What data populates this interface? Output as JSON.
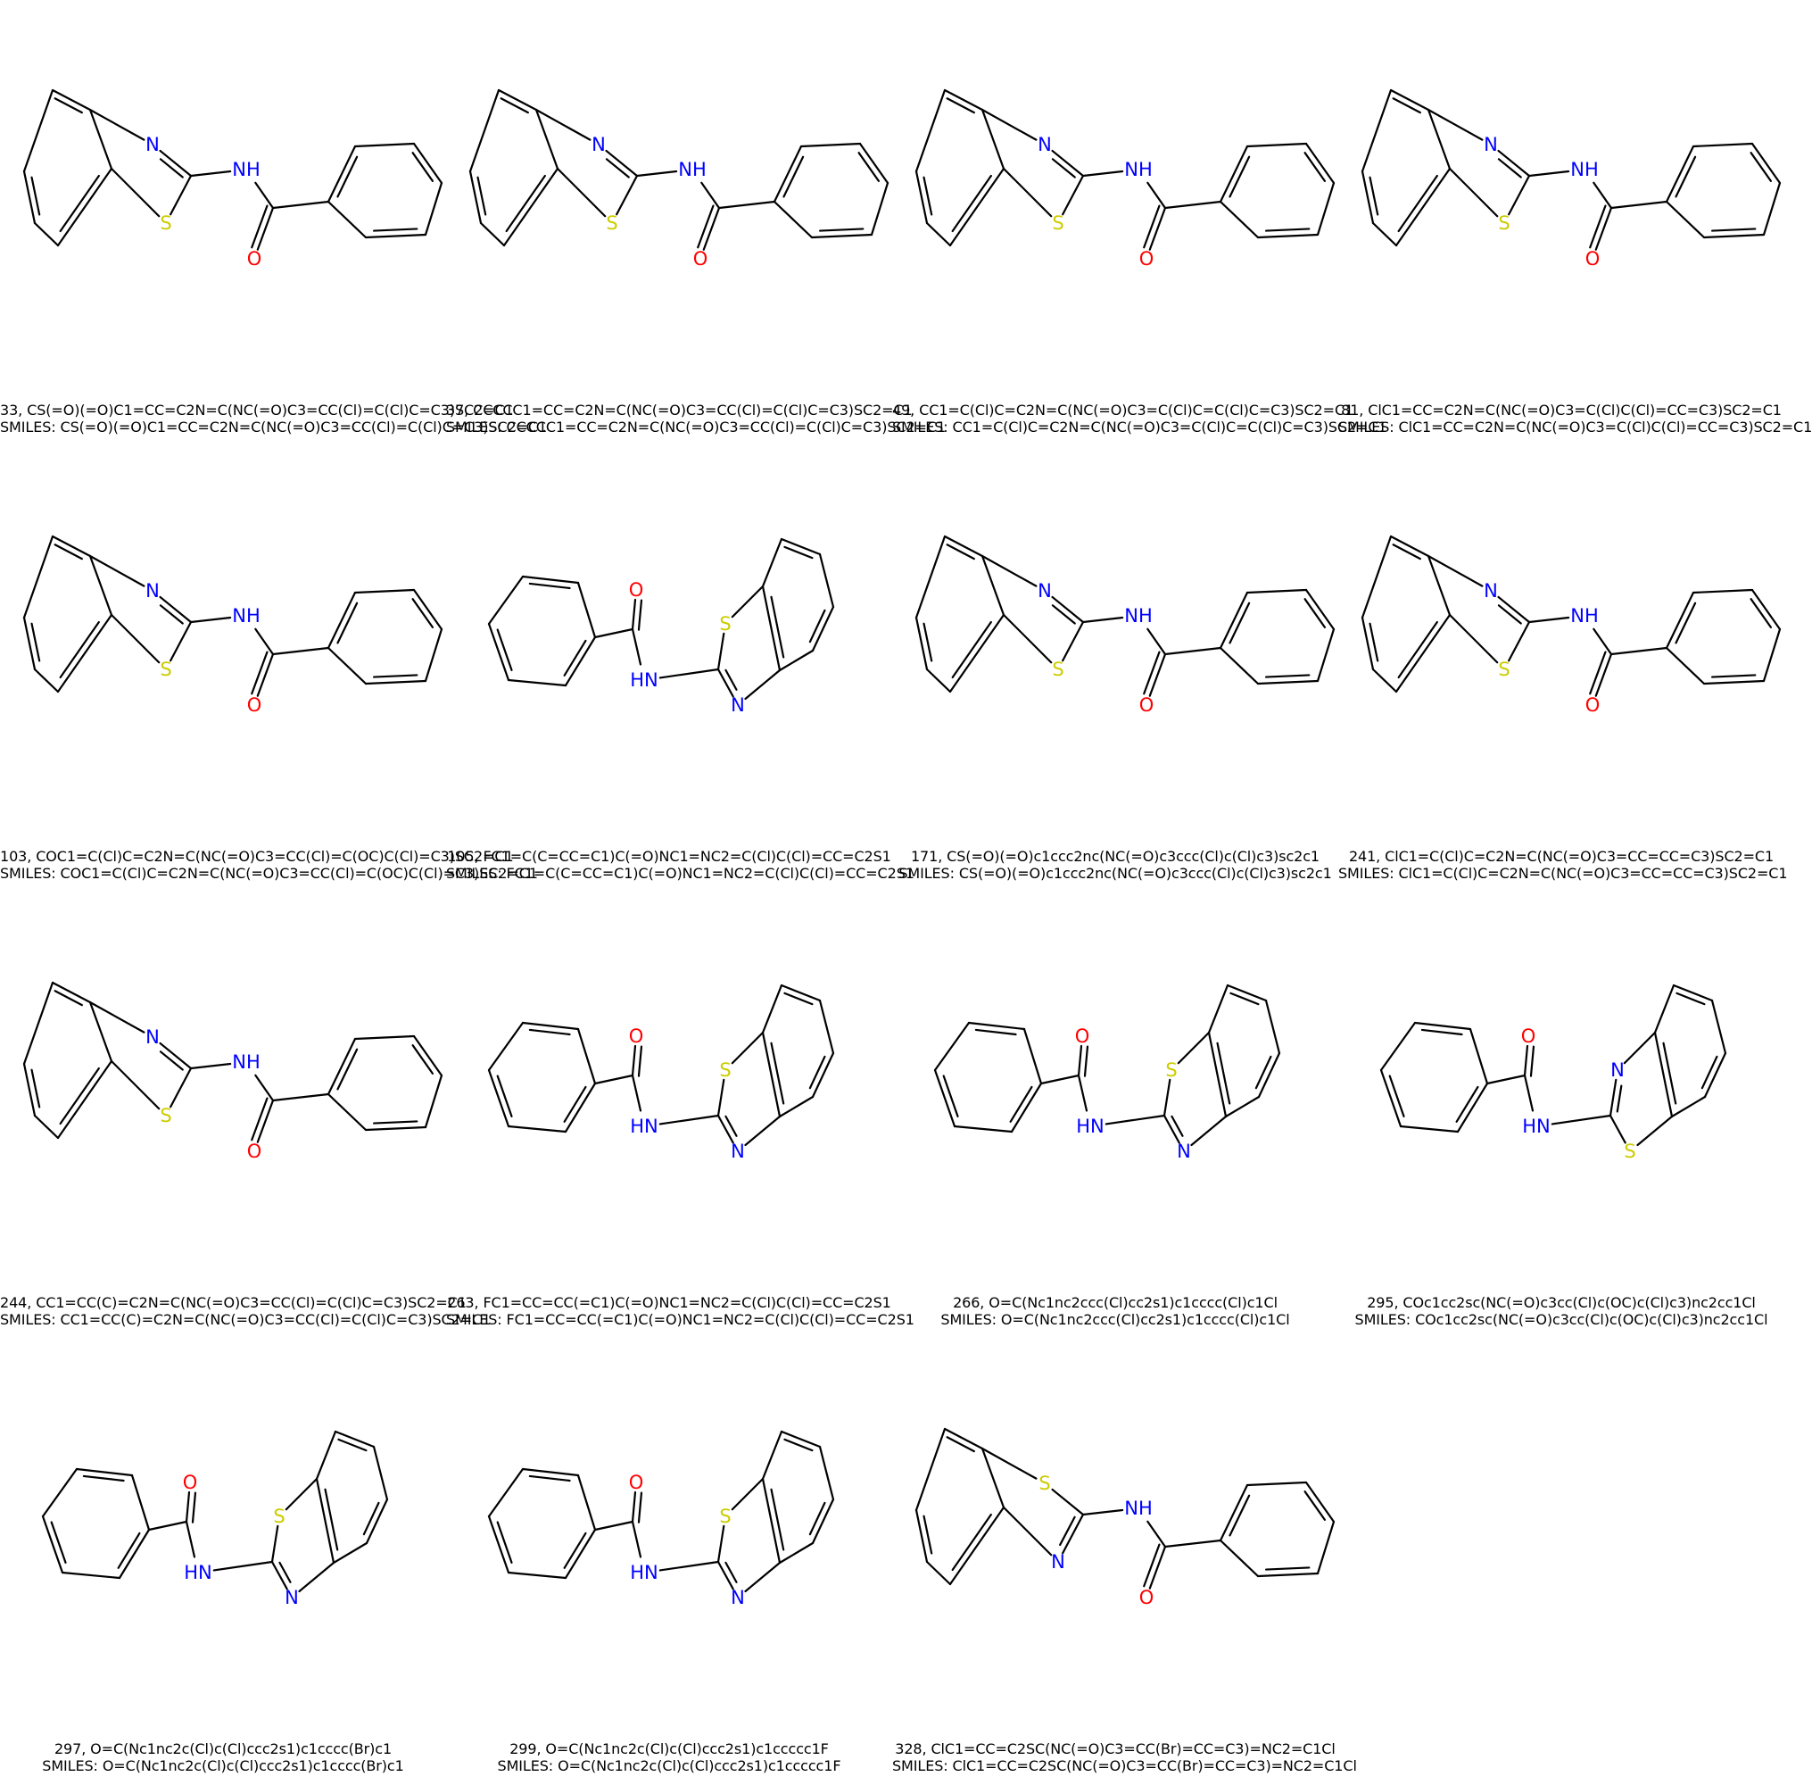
{
  "colors": {
    "nitrogen": "#0000ff",
    "oxygen": "#ff0000",
    "sulfur": "#cccc00",
    "bond": "#000000"
  },
  "atom_labels": {
    "N": "N",
    "NH": "NH",
    "HN": "HN",
    "S": "S",
    "O": "O"
  },
  "molecules": [
    {
      "caption": "33, CS(=O)(=O)C1=CC=C2N=C(NC(=O)C3=CC(Cl)=C(Cl)C=C3)SC2=C1",
      "smiles_caption": "SMILES: CS(=O)(=O)C1=CC=C2N=C(NC(=O)C3=CC(Cl)=C(Cl)C=C3)SC2=C1",
      "orientation": "A"
    },
    {
      "caption": "37, CCCCC1=CC=C2N=C(NC(=O)C3=CC(Cl)=C(Cl)C=C3)SC2=C1",
      "smiles_caption": "SMILES: CCCCC1=CC=C2N=C(NC(=O)C3=CC(Cl)=C(Cl)C=C3)SC2=C1",
      "orientation": "A"
    },
    {
      "caption": "49, CC1=C(Cl)C=C2N=C(NC(=O)C3=C(Cl)C=C(Cl)C=C3)SC2=C1",
      "smiles_caption": "SMILES: CC1=C(Cl)C=C2N=C(NC(=O)C3=C(Cl)C=C(Cl)C=C3)SC2=C1",
      "orientation": "A"
    },
    {
      "caption": "81, ClC1=CC=C2N=C(NC(=O)C3=C(Cl)C(Cl)=CC=C3)SC2=C1",
      "smiles_caption": "SMILES: ClC1=CC=C2N=C(NC(=O)C3=C(Cl)C(Cl)=CC=C3)SC2=C1",
      "orientation": "A"
    },
    {
      "caption": "103, COC1=C(Cl)C=C2N=C(NC(=O)C3=CC(Cl)=C(OC)C(Cl)=C3)SC2=C1",
      "smiles_caption": "SMILES: COC1=C(Cl)C=C2N=C(NC(=O)C3=CC(Cl)=C(OC)C(Cl)=C3)SC2=C1",
      "orientation": "A"
    },
    {
      "caption": "105, FC1=C(C=CC=C1)C(=O)NC1=NC2=C(Cl)C(Cl)=CC=C2S1",
      "smiles_caption": "SMILES: FC1=C(C=CC=C1)C(=O)NC1=NC2=C(Cl)C(Cl)=CC=C2S1",
      "orientation": "B"
    },
    {
      "caption": "171, CS(=O)(=O)c1ccc2nc(NC(=O)c3ccc(Cl)c(Cl)c3)sc2c1",
      "smiles_caption": "SMILES: CS(=O)(=O)c1ccc2nc(NC(=O)c3ccc(Cl)c(Cl)c3)sc2c1",
      "orientation": "A"
    },
    {
      "caption": "241, ClC1=C(Cl)C=C2N=C(NC(=O)C3=CC=CC=C3)SC2=C1",
      "smiles_caption": "SMILES: ClC1=C(Cl)C=C2N=C(NC(=O)C3=CC=CC=C3)SC2=C1",
      "orientation": "A"
    },
    {
      "caption": "244, CC1=CC(C)=C2N=C(NC(=O)C3=CC(Cl)=C(Cl)C=C3)SC2=C1",
      "smiles_caption": "SMILES: CC1=CC(C)=C2N=C(NC(=O)C3=CC(Cl)=C(Cl)C=C3)SC2=C1",
      "orientation": "A"
    },
    {
      "caption": "263, FC1=CC=CC(=C1)C(=O)NC1=NC2=C(Cl)C(Cl)=CC=C2S1",
      "smiles_caption": "SMILES: FC1=CC=CC(=C1)C(=O)NC1=NC2=C(Cl)C(Cl)=CC=C2S1",
      "orientation": "B"
    },
    {
      "caption": "266, O=C(Nc1nc2ccc(Cl)cc2s1)c1cccc(Cl)c1Cl",
      "smiles_caption": "SMILES: O=C(Nc1nc2ccc(Cl)cc2s1)c1cccc(Cl)c1Cl",
      "orientation": "B"
    },
    {
      "caption": "295, COc1cc2sc(NC(=O)c3cc(Cl)c(OC)c(Cl)c3)nc2cc1Cl",
      "smiles_caption": "SMILES: COc1cc2sc(NC(=O)c3cc(Cl)c(OC)c(Cl)c3)nc2cc1Cl",
      "orientation": "C"
    },
    {
      "caption": "297, O=C(Nc1nc2c(Cl)c(Cl)ccc2s1)c1cccc(Br)c1",
      "smiles_caption": "SMILES: O=C(Nc1nc2c(Cl)c(Cl)ccc2s1)c1cccc(Br)c1",
      "orientation": "B"
    },
    {
      "caption": "299, O=C(Nc1nc2c(Cl)c(Cl)ccc2s1)c1ccccc1F",
      "smiles_caption": "SMILES: O=C(Nc1nc2c(Cl)c(Cl)ccc2s1)c1ccccc1F",
      "orientation": "B"
    },
    {
      "caption": "328, ClC1=CC=C2SC(NC(=O)C3=CC(Br)=CC=C3)=NC2=C1Cl",
      "smiles_caption": "SMILES: ClC1=CC=C2SC(NC(=O)C3=CC(Br)=CC=C3)=NC2=C1Cl",
      "orientation": "D"
    }
  ]
}
